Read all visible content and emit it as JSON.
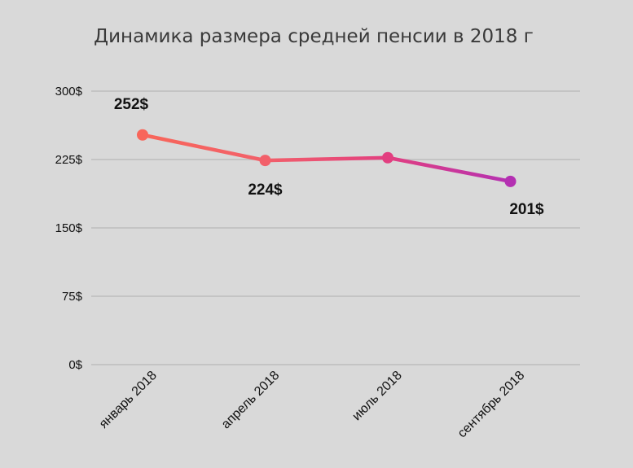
{
  "chart_data": {
    "type": "line",
    "title": "Динамика размера средней пенсии в 2018 г",
    "xlabel": "",
    "ylabel": "",
    "categories": [
      "январь 2018",
      "апрель 2018",
      "июль 2018",
      "сентябрь 2018"
    ],
    "values": [
      252,
      224,
      227,
      201
    ],
    "data_labels": [
      "252$",
      "224$",
      "",
      "201$"
    ],
    "ylim": [
      0,
      300
    ],
    "yticks": [
      0,
      75,
      150,
      225,
      300
    ],
    "ytick_labels": [
      "0$",
      "75$",
      "150$",
      "225$",
      "300$"
    ],
    "grid": true,
    "legend": "none",
    "point_colors": [
      "#f8665a",
      "#f2606a",
      "#e23f80",
      "#b430b2"
    ],
    "background": "#d9d9d9"
  }
}
